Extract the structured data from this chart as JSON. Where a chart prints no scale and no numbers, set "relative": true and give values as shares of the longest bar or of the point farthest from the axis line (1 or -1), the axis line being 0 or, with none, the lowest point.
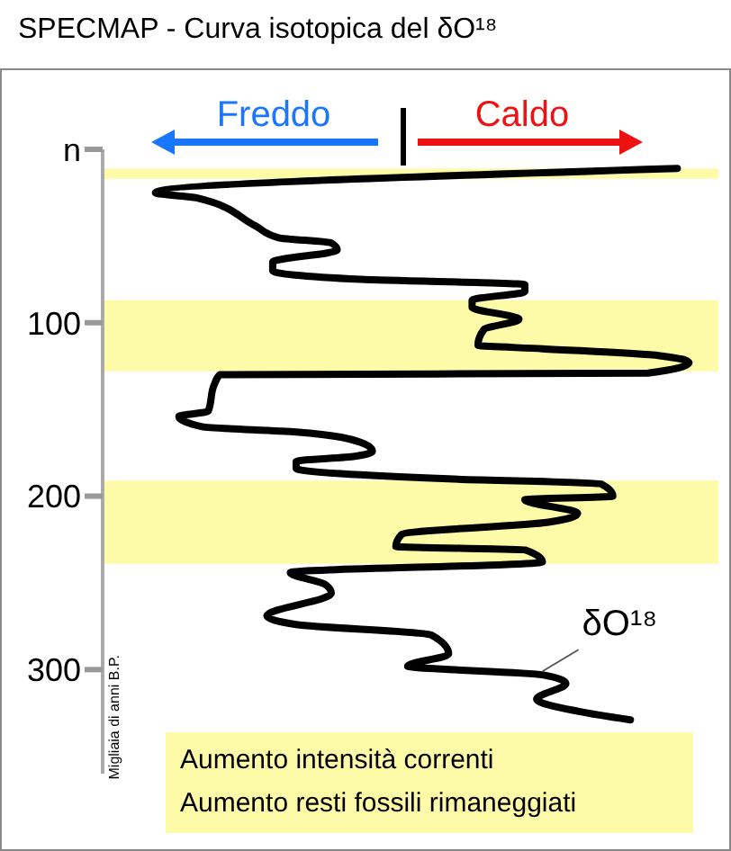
{
  "chart_data": {
    "type": "line",
    "title": "SPECMAP - Curva isotopica del δO¹⁸",
    "ylabel": "Migliaia di anni B.P.",
    "orientation": "horizontal",
    "relative": true,
    "marker": "none",
    "line_style": "solid",
    "color": "#000000",
    "x": [
      11,
      25,
      28,
      44,
      51,
      54,
      58,
      65,
      70,
      75,
      78,
      82,
      87,
      91,
      98,
      104,
      113,
      115,
      119,
      123,
      129,
      130,
      136,
      151,
      154,
      160,
      163,
      169,
      174,
      177,
      180,
      184,
      190,
      193,
      200,
      202,
      210,
      215,
      222,
      229,
      231,
      238,
      244,
      251,
      256,
      269,
      274,
      280,
      291,
      298,
      303,
      308,
      317,
      324,
      329
    ],
    "values": [
      0.98,
      0.09,
      0.16,
      0.26,
      0.3,
      0.39,
      0.4,
      0.29,
      0.29,
      0.44,
      0.72,
      0.72,
      0.63,
      0.63,
      0.71,
      0.65,
      0.64,
      0.75,
      0.95,
      1.0,
      0.93,
      0.2,
      0.19,
      0.18,
      0.13,
      0.17,
      0.33,
      0.44,
      0.46,
      0.43,
      0.33,
      0.33,
      0.59,
      0.85,
      0.87,
      0.72,
      0.81,
      0.76,
      0.51,
      0.5,
      0.72,
      0.75,
      0.32,
      0.38,
      0.39,
      0.28,
      0.33,
      0.56,
      0.59,
      0.52,
      0.75,
      0.79,
      0.74,
      0.81,
      0.9
    ],
    "ylim": [
      360,
      0
    ],
    "yticks": [
      {
        "value": 0,
        "label": "n"
      },
      100,
      200,
      300
    ],
    "bands": [
      {
        "axis": "y",
        "from": 11,
        "to": 17,
        "color": "#fdfaa8"
      },
      {
        "axis": "y",
        "from": 87,
        "to": 128,
        "color": "#fdfaa8"
      },
      {
        "axis": "y",
        "from": 191,
        "to": 239,
        "color": "#fdfaa8"
      }
    ],
    "annotations": [
      "Freddo",
      "Caldo",
      "Aumento intensità correnti",
      "Aumento resti fossili rimaneggiati",
      {
        "text": "δO¹⁸",
        "x": 0.75,
        "y": 301
      }
    ]
  }
}
